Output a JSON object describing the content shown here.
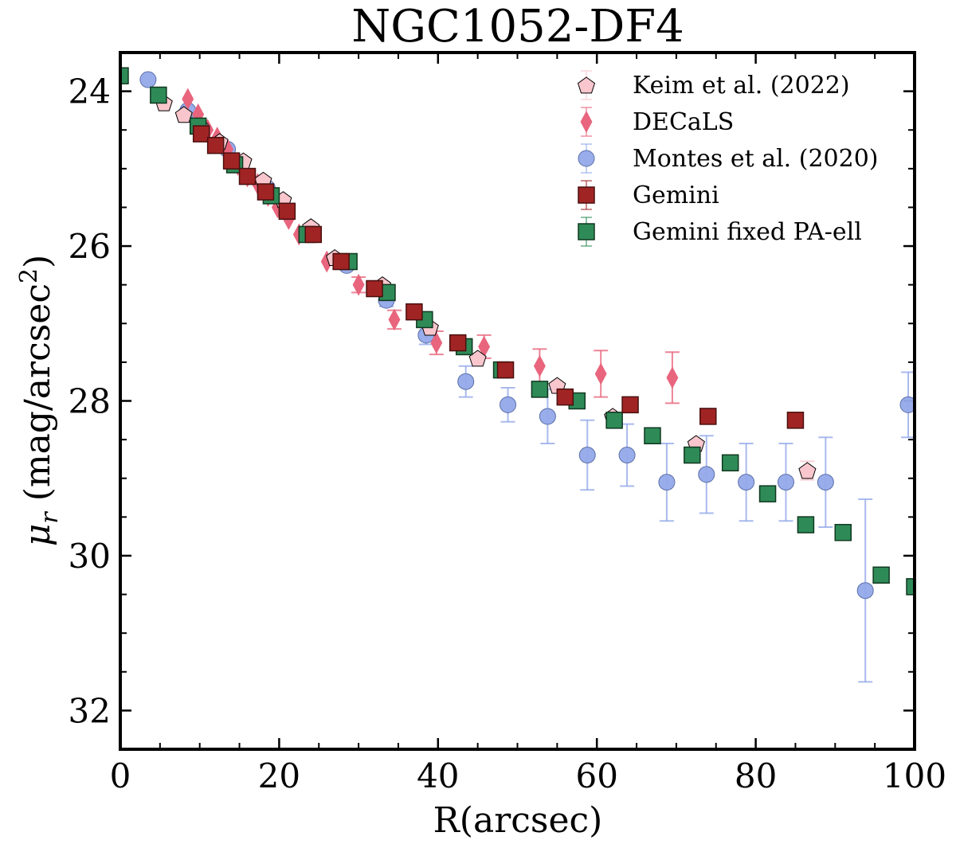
{
  "chart_data": {
    "type": "scatter",
    "title": "NGC1052-DF4",
    "xlabel": "R(arcsec)",
    "ylabel": "μ_r (mag/arcsec^2)",
    "ylabel_parts": {
      "mu": "μ",
      "sub": "r",
      "text": " (mag/arcsec",
      "sup": "2",
      "close": ")"
    },
    "xlim": [
      0,
      100
    ],
    "ylim": [
      32.5,
      23.5
    ],
    "y_inverted": true,
    "x_major_ticks": [
      0,
      20,
      40,
      60,
      80,
      100
    ],
    "x_tick_labels": [
      "0",
      "20",
      "40",
      "60",
      "80",
      "100"
    ],
    "x_minor_ticks": [
      5,
      10,
      15,
      25,
      30,
      35,
      45,
      50,
      55,
      65,
      70,
      75,
      85,
      90,
      95
    ],
    "y_major_ticks": [
      24,
      26,
      28,
      30,
      32
    ],
    "y_tick_labels": [
      "24",
      "26",
      "28",
      "30",
      "32"
    ],
    "y_minor_ticks": [
      24.5,
      25,
      25.5,
      26.5,
      27,
      27.5,
      28.5,
      29,
      29.5,
      30.5,
      31,
      31.5
    ],
    "legend_position": "top-right",
    "series": [
      {
        "name": "Keim et al. (2022)",
        "marker": "pentagon",
        "color": "#f9c6cd",
        "edge": "#000000",
        "x": [
          5.5,
          8,
          10,
          12.5,
          15.5,
          18,
          20.5,
          24,
          27,
          33,
          39,
          45,
          55,
          62,
          72.5,
          86.5
        ],
        "y": [
          24.15,
          24.3,
          24.45,
          24.65,
          24.9,
          25.15,
          25.4,
          25.75,
          26.15,
          26.5,
          27.05,
          27.45,
          27.8,
          28.2,
          28.55,
          28.9
        ],
        "err": [
          0,
          0,
          0,
          0,
          0,
          0,
          0,
          0,
          0,
          0,
          0,
          0,
          0,
          0,
          0,
          0.12
        ]
      },
      {
        "name": "DECaLS",
        "marker": "diamond",
        "color": "#e8657d",
        "edge": "#e8657d",
        "x": [
          8.5,
          9.8,
          11,
          12.2,
          13.5,
          14.8,
          16,
          17.3,
          18.6,
          19.8,
          21.2,
          22.5,
          26,
          30,
          34.5,
          39.8,
          45.8,
          52.8,
          60.5,
          69.5
        ],
        "y": [
          24.1,
          24.3,
          24.5,
          24.6,
          24.75,
          24.95,
          25.1,
          25.2,
          25.35,
          25.5,
          25.65,
          25.85,
          26.2,
          26.5,
          26.95,
          27.25,
          27.3,
          27.55,
          27.65,
          27.7
        ],
        "err": [
          0,
          0,
          0,
          0,
          0,
          0,
          0,
          0,
          0,
          0,
          0,
          0,
          0,
          0.1,
          0.12,
          0.15,
          0.15,
          0.22,
          0.3,
          0.33
        ]
      },
      {
        "name": "Montes et al. (2020)",
        "marker": "circle",
        "color": "#93a9ea",
        "edge": "#5b6fa8",
        "x": [
          3.5,
          8.5,
          13.5,
          18.5,
          23.5,
          28.5,
          33.5,
          38.5,
          43.5,
          48.8,
          53.8,
          58.8,
          63.8,
          68.8,
          73.8,
          78.8,
          83.8,
          88.8,
          93.8,
          99.2
        ],
        "y": [
          23.85,
          24.25,
          24.75,
          25.25,
          25.85,
          26.25,
          26.7,
          27.15,
          27.75,
          28.05,
          28.2,
          28.7,
          28.7,
          29.05,
          28.95,
          29.05,
          29.05,
          29.05,
          30.45,
          28.05
        ],
        "err": [
          0,
          0.05,
          0.05,
          0.05,
          0.05,
          0.05,
          0.08,
          0.12,
          0.2,
          0.22,
          0.35,
          0.45,
          0.4,
          0.5,
          0.5,
          0.5,
          0.5,
          0.58,
          1.18,
          0.42
        ]
      },
      {
        "name": "Gemini",
        "marker": "square",
        "color": "#a12424",
        "edge": "#4a0f0f",
        "x": [
          10.2,
          12,
          14,
          16,
          18.3,
          21,
          24.3,
          27.8,
          32,
          37,
          42.5,
          48.5,
          56,
          64.2,
          74,
          85
        ],
        "y": [
          24.55,
          24.7,
          24.9,
          25.1,
          25.3,
          25.55,
          25.85,
          26.2,
          26.55,
          26.85,
          27.25,
          27.6,
          27.95,
          28.05,
          28.2,
          28.25
        ],
        "err": [
          0,
          0,
          0,
          0,
          0,
          0,
          0,
          0,
          0,
          0,
          0,
          0,
          0,
          0,
          0,
          0
        ]
      },
      {
        "name": "Gemini fixed PA-ell",
        "marker": "square",
        "color": "#2e8b57",
        "edge": "#103820",
        "x": [
          0,
          4.8,
          9.8,
          14.4,
          19,
          23.5,
          28.8,
          33.6,
          38.3,
          43.3,
          48,
          52.8,
          57.5,
          62.2,
          67,
          72,
          76.8,
          81.5,
          86.3,
          91,
          95.8,
          100
        ],
        "y": [
          23.8,
          24.05,
          24.45,
          24.95,
          25.35,
          25.85,
          26.2,
          26.6,
          26.95,
          27.3,
          27.6,
          27.85,
          28,
          28.25,
          28.45,
          28.7,
          28.8,
          29.2,
          29.6,
          29.7,
          30.25,
          30.4
        ],
        "err": [
          0,
          0,
          0,
          0,
          0,
          0,
          0,
          0,
          0,
          0,
          0,
          0,
          0,
          0,
          0,
          0,
          0,
          0,
          0,
          0,
          0,
          0
        ]
      }
    ]
  }
}
